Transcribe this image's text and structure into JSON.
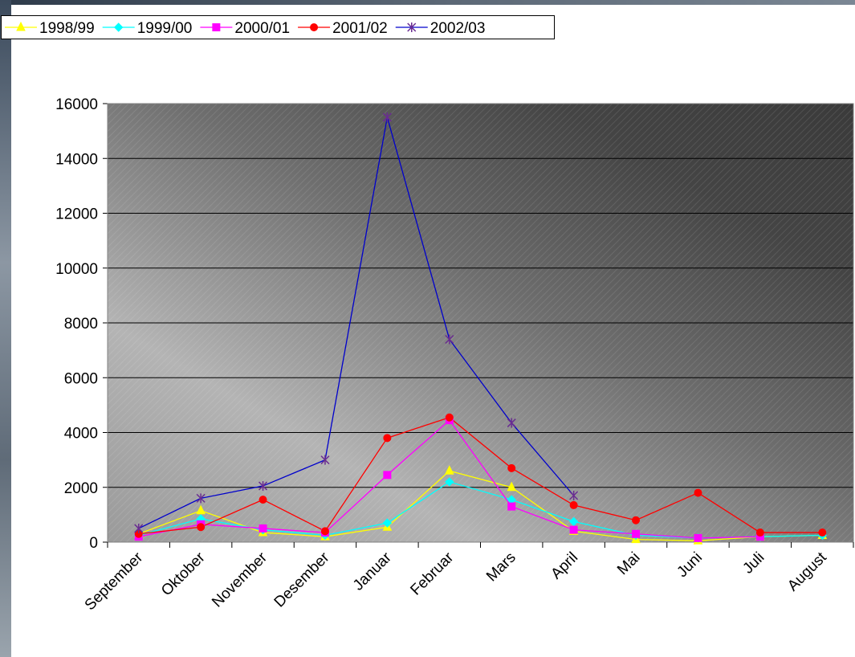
{
  "chart_data": {
    "type": "line",
    "categories": [
      "September",
      "Oktober",
      "November",
      "Desember",
      "Januar",
      "Februar",
      "Mars",
      "April",
      "Mai",
      "Juni",
      "Juli",
      "August"
    ],
    "ylim": [
      0,
      16000
    ],
    "yticks": [
      "0",
      "2000",
      "4000",
      "6000",
      "8000",
      "10000",
      "12000",
      "14000",
      "16000"
    ],
    "grid": true,
    "legend_position": "top-left",
    "series": [
      {
        "name": "1998/99",
        "color": "#ffff00",
        "marker": "triangle",
        "values": [
          300,
          1150,
          350,
          200,
          550,
          2600,
          2000,
          400,
          100,
          50,
          200,
          250
        ]
      },
      {
        "name": "1999/00",
        "color": "#00ffff",
        "marker": "diamond",
        "values": [
          250,
          850,
          450,
          250,
          700,
          2200,
          1550,
          750,
          250,
          150,
          200,
          250
        ]
      },
      {
        "name": "2000/01",
        "color": "#ff00ff",
        "marker": "square",
        "values": [
          200,
          650,
          500,
          350,
          2450,
          4450,
          1300,
          450,
          300,
          150,
          200,
          null
        ]
      },
      {
        "name": "2001/02",
        "color": "#ff0000",
        "marker": "circle",
        "values": [
          300,
          550,
          1550,
          400,
          3800,
          4550,
          2700,
          1350,
          800,
          1800,
          350,
          350
        ]
      },
      {
        "name": "2002/03",
        "color": "#0000cc",
        "marker_color": "#6a2c91",
        "marker": "star",
        "values": [
          500,
          1600,
          2050,
          3000,
          15500,
          7400,
          4350,
          1700,
          null,
          null,
          null,
          null
        ]
      }
    ]
  }
}
